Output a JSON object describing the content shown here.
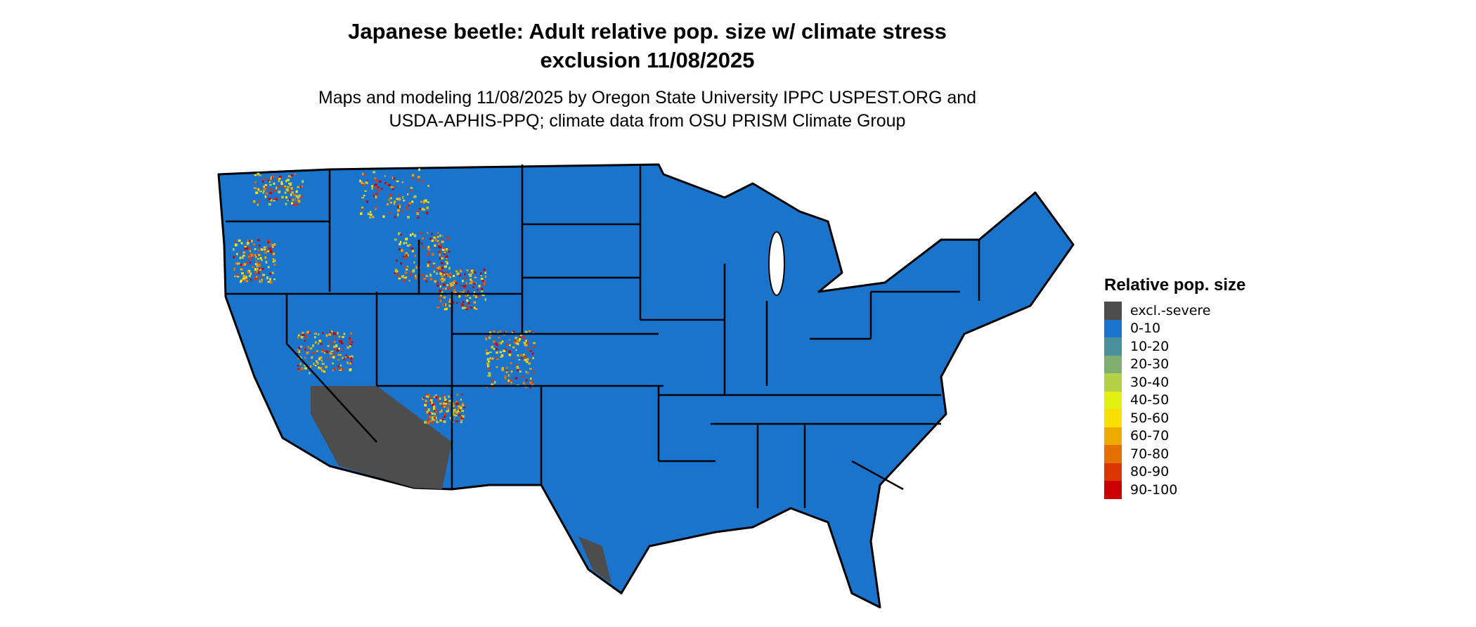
{
  "title_line1": "Japanese beetle: Adult relative pop. size w/ climate stress",
  "title_line2": "exclusion 11/08/2025",
  "subtitle_line1": "Maps and modeling 11/08/2025 by Oregon State University IPPC USPEST.ORG and",
  "subtitle_line2": "USDA-APHIS-PPQ; climate data from OSU PRISM Climate Group",
  "map": {
    "region": "Contiguous United States with state boundaries",
    "dominant_category": "0-10",
    "excluded_areas": "excl.-severe",
    "colors": {
      "land": "#1b74cc",
      "excluded": "#4d4d4d",
      "border": "#000000"
    }
  },
  "legend": {
    "title": "Relative pop. size",
    "items": [
      {
        "label": "excl.-severe",
        "color": "#4d4d4d"
      },
      {
        "label": "0-10",
        "color": "#1b74cc"
      },
      {
        "label": "10-20",
        "color": "#4a8f9c"
      },
      {
        "label": "20-30",
        "color": "#7faf70"
      },
      {
        "label": "30-40",
        "color": "#b2d145"
      },
      {
        "label": "40-50",
        "color": "#e4ef14"
      },
      {
        "label": "50-60",
        "color": "#f9e000"
      },
      {
        "label": "60-70",
        "color": "#eeaa00"
      },
      {
        "label": "70-80",
        "color": "#e47000"
      },
      {
        "label": "80-90",
        "color": "#dc3600"
      },
      {
        "label": "90-100",
        "color": "#cc0000"
      }
    ]
  }
}
